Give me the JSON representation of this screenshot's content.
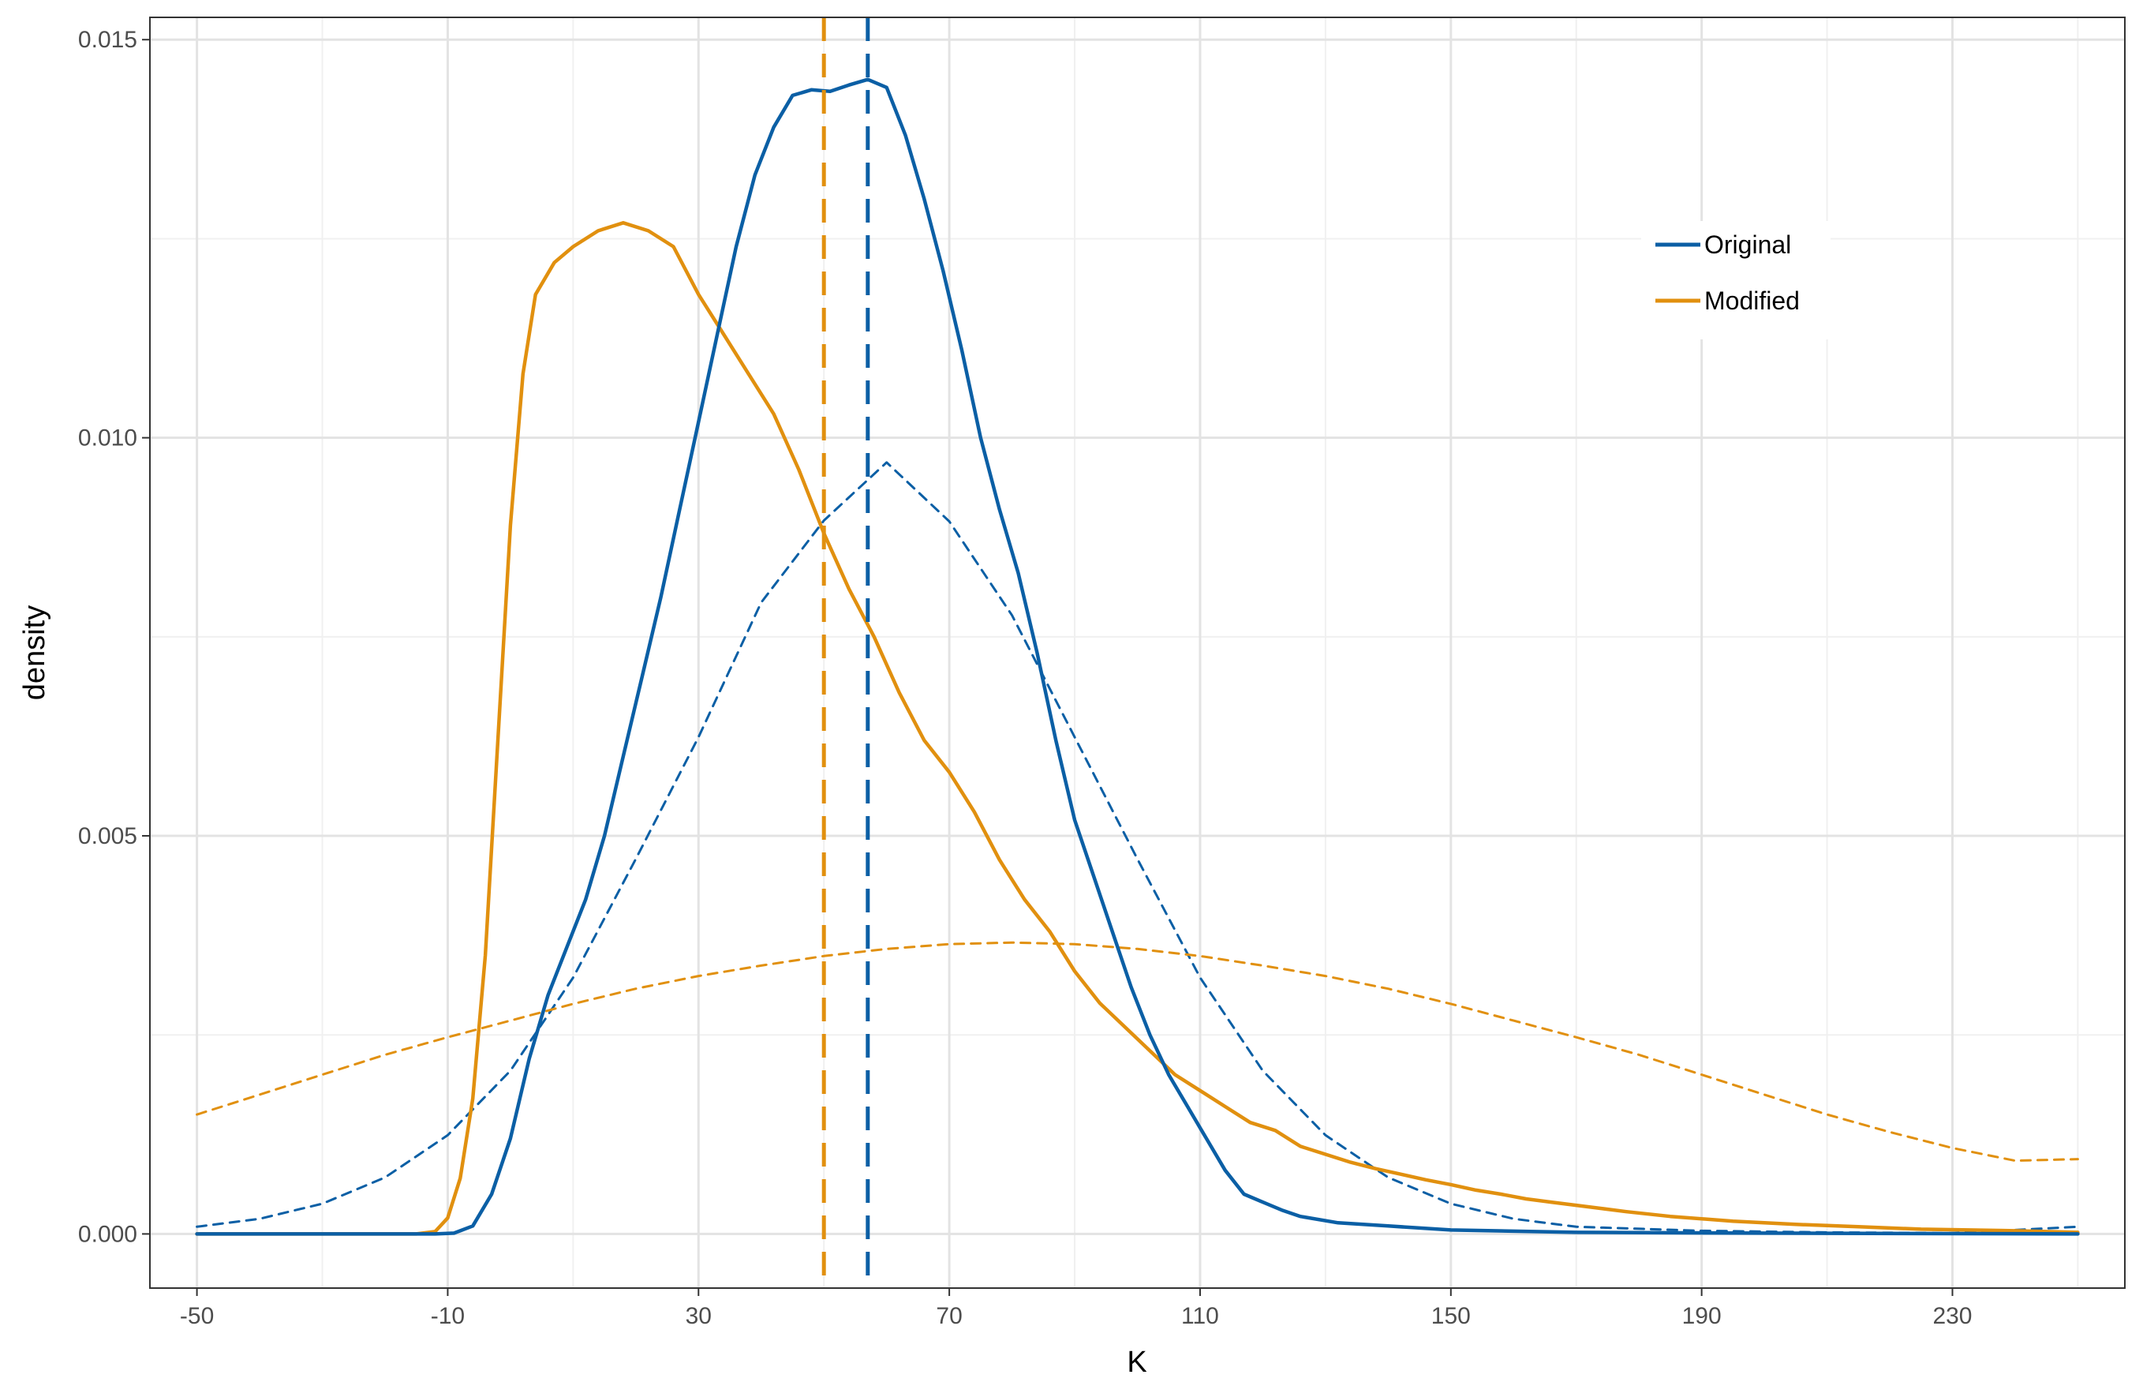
{
  "chart_data": {
    "type": "line",
    "title": "",
    "xlabel": "K",
    "ylabel": "density",
    "xlim": [
      -57.5,
      257.5
    ],
    "ylim": [
      -0.00068,
      0.01528
    ],
    "x_ticks": [
      -50,
      -10,
      30,
      70,
      110,
      150,
      190,
      230
    ],
    "x_tick_labels": [
      "-50",
      "-10",
      "30",
      "70",
      "110",
      "150",
      "190",
      "230"
    ],
    "y_ticks": [
      0.0,
      0.005,
      0.01,
      0.015
    ],
    "y_tick_labels": [
      "0.000",
      "0.005",
      "0.010",
      "0.015"
    ],
    "grid": true,
    "legend": {
      "position": "top-right",
      "entries": [
        {
          "label": "Original",
          "color": "#0b5fa5"
        },
        {
          "label": "Modified",
          "color": "#e1900f"
        }
      ]
    },
    "series": [
      {
        "name": "Original",
        "style": "solid",
        "color": "#0b5fa5",
        "points": [
          [
            -50,
            0
          ],
          [
            -20,
            0
          ],
          [
            -12,
            0
          ],
          [
            -9,
            1e-05
          ],
          [
            -6,
            0.0001
          ],
          [
            -3,
            0.0005
          ],
          [
            0,
            0.0012
          ],
          [
            3,
            0.0022
          ],
          [
            6,
            0.003
          ],
          [
            9,
            0.0036
          ],
          [
            12,
            0.0042
          ],
          [
            15,
            0.005
          ],
          [
            18,
            0.006
          ],
          [
            21,
            0.007
          ],
          [
            24,
            0.008
          ],
          [
            27,
            0.0091
          ],
          [
            30,
            0.0102
          ],
          [
            33,
            0.0113
          ],
          [
            36,
            0.0124
          ],
          [
            39,
            0.0133
          ],
          [
            42,
            0.0139
          ],
          [
            45,
            0.0143
          ],
          [
            48,
            0.01437
          ],
          [
            51,
            0.01435
          ],
          [
            54,
            0.01443
          ],
          [
            57,
            0.0145
          ],
          [
            60,
            0.0144
          ],
          [
            63,
            0.0138
          ],
          [
            66,
            0.013
          ],
          [
            69,
            0.0121
          ],
          [
            72,
            0.0111
          ],
          [
            75,
            0.01
          ],
          [
            78,
            0.0091
          ],
          [
            81,
            0.0083
          ],
          [
            84,
            0.0073
          ],
          [
            87,
            0.0062
          ],
          [
            90,
            0.0052
          ],
          [
            93,
            0.0045
          ],
          [
            96,
            0.0038
          ],
          [
            99,
            0.0031
          ],
          [
            102,
            0.0025
          ],
          [
            105,
            0.002
          ],
          [
            108,
            0.0016
          ],
          [
            111,
            0.0012
          ],
          [
            114,
            0.0008
          ],
          [
            117,
            0.0005
          ],
          [
            120,
            0.0004
          ],
          [
            123,
            0.0003
          ],
          [
            126,
            0.00022
          ],
          [
            132,
            0.00014
          ],
          [
            140,
            0.0001
          ],
          [
            150,
            5e-05
          ],
          [
            170,
            2e-05
          ],
          [
            200,
            1e-05
          ],
          [
            250,
            0
          ]
        ]
      },
      {
        "name": "Modified",
        "style": "solid",
        "color": "#e1900f",
        "points": [
          [
            -50,
            0
          ],
          [
            -15,
            0
          ],
          [
            -12,
            3e-05
          ],
          [
            -10,
            0.0002
          ],
          [
            -8,
            0.0007
          ],
          [
            -6,
            0.0017
          ],
          [
            -4,
            0.0035
          ],
          [
            -2,
            0.0062
          ],
          [
            0,
            0.0089
          ],
          [
            2,
            0.0108
          ],
          [
            4,
            0.0118
          ],
          [
            7,
            0.0122
          ],
          [
            10,
            0.0124
          ],
          [
            14,
            0.0126
          ],
          [
            18,
            0.0127
          ],
          [
            22,
            0.0126
          ],
          [
            26,
            0.0124
          ],
          [
            30,
            0.0118
          ],
          [
            34,
            0.0113
          ],
          [
            38,
            0.0108
          ],
          [
            42,
            0.0103
          ],
          [
            46,
            0.0096
          ],
          [
            50,
            0.0088
          ],
          [
            54,
            0.0081
          ],
          [
            58,
            0.0075
          ],
          [
            62,
            0.0068
          ],
          [
            66,
            0.0062
          ],
          [
            70,
            0.0058
          ],
          [
            74,
            0.0053
          ],
          [
            78,
            0.0047
          ],
          [
            82,
            0.0042
          ],
          [
            86,
            0.0038
          ],
          [
            90,
            0.0033
          ],
          [
            94,
            0.0029
          ],
          [
            98,
            0.0026
          ],
          [
            102,
            0.0023
          ],
          [
            106,
            0.002
          ],
          [
            110,
            0.0018
          ],
          [
            114,
            0.0016
          ],
          [
            118,
            0.0014
          ],
          [
            122,
            0.0013
          ],
          [
            126,
            0.0011
          ],
          [
            130,
            0.001
          ],
          [
            134,
            0.0009
          ],
          [
            138,
            0.00082
          ],
          [
            142,
            0.00075
          ],
          [
            146,
            0.00068
          ],
          [
            150,
            0.00062
          ],
          [
            154,
            0.00055
          ],
          [
            158,
            0.0005
          ],
          [
            162,
            0.00044
          ],
          [
            166,
            0.0004
          ],
          [
            170,
            0.00036
          ],
          [
            174,
            0.00032
          ],
          [
            178,
            0.00028
          ],
          [
            185,
            0.00022
          ],
          [
            195,
            0.00016
          ],
          [
            205,
            0.00012
          ],
          [
            215,
            9e-05
          ],
          [
            225,
            6e-05
          ],
          [
            240,
            4e-05
          ],
          [
            250,
            2e-05
          ]
        ]
      },
      {
        "name": "",
        "style": "dashed",
        "color": "#0b5fa5",
        "points": [
          [
            -50,
            9e-05
          ],
          [
            -40,
            0.00019
          ],
          [
            -30,
            0.00038
          ],
          [
            -20,
            0.00071
          ],
          [
            -10,
            0.00124
          ],
          [
            0,
            0.00205
          ],
          [
            10,
            0.00322
          ],
          [
            20,
            0.00471
          ],
          [
            30,
            0.00624
          ],
          [
            40,
            0.00793
          ],
          [
            50,
            0.00896
          ],
          [
            60,
            0.00969
          ],
          [
            70,
            0.00895
          ],
          [
            80,
            0.00777
          ],
          [
            90,
            0.00624
          ],
          [
            100,
            0.00471
          ],
          [
            110,
            0.00322
          ],
          [
            120,
            0.00205
          ],
          [
            130,
            0.00124
          ],
          [
            140,
            0.00071
          ],
          [
            150,
            0.00038
          ],
          [
            160,
            0.00019
          ],
          [
            170,
            9e-05
          ],
          [
            190,
            4e-05
          ],
          [
            210,
            2e-05
          ],
          [
            230,
            1e-05
          ],
          [
            250,
            9e-05
          ]
        ]
      },
      {
        "name": "",
        "style": "dashed",
        "color": "#e1900f",
        "points": [
          [
            -50,
            0.0015
          ],
          [
            -40,
            0.00175
          ],
          [
            -30,
            0.002
          ],
          [
            -20,
            0.00225
          ],
          [
            -10,
            0.00247
          ],
          [
            0,
            0.00268
          ],
          [
            10,
            0.00289
          ],
          [
            20,
            0.00308
          ],
          [
            30,
            0.00324
          ],
          [
            40,
            0.00337
          ],
          [
            50,
            0.00349
          ],
          [
            60,
            0.00358
          ],
          [
            70,
            0.00364
          ],
          [
            80,
            0.00366
          ],
          [
            90,
            0.00364
          ],
          [
            100,
            0.00358
          ],
          [
            110,
            0.00349
          ],
          [
            120,
            0.00337
          ],
          [
            130,
            0.00324
          ],
          [
            140,
            0.00308
          ],
          [
            150,
            0.00289
          ],
          [
            160,
            0.00268
          ],
          [
            170,
            0.00247
          ],
          [
            180,
            0.00225
          ],
          [
            190,
            0.002
          ],
          [
            200,
            0.00175
          ],
          [
            210,
            0.0015
          ],
          [
            220,
            0.00128
          ],
          [
            230,
            0.00108
          ],
          [
            240,
            0.00092
          ],
          [
            250,
            0.00094
          ]
        ]
      }
    ],
    "vlines": [
      {
        "x": 50,
        "color": "#e1900f",
        "style": "longdash"
      },
      {
        "x": 57,
        "color": "#0b5fa5",
        "style": "longdash"
      }
    ]
  }
}
